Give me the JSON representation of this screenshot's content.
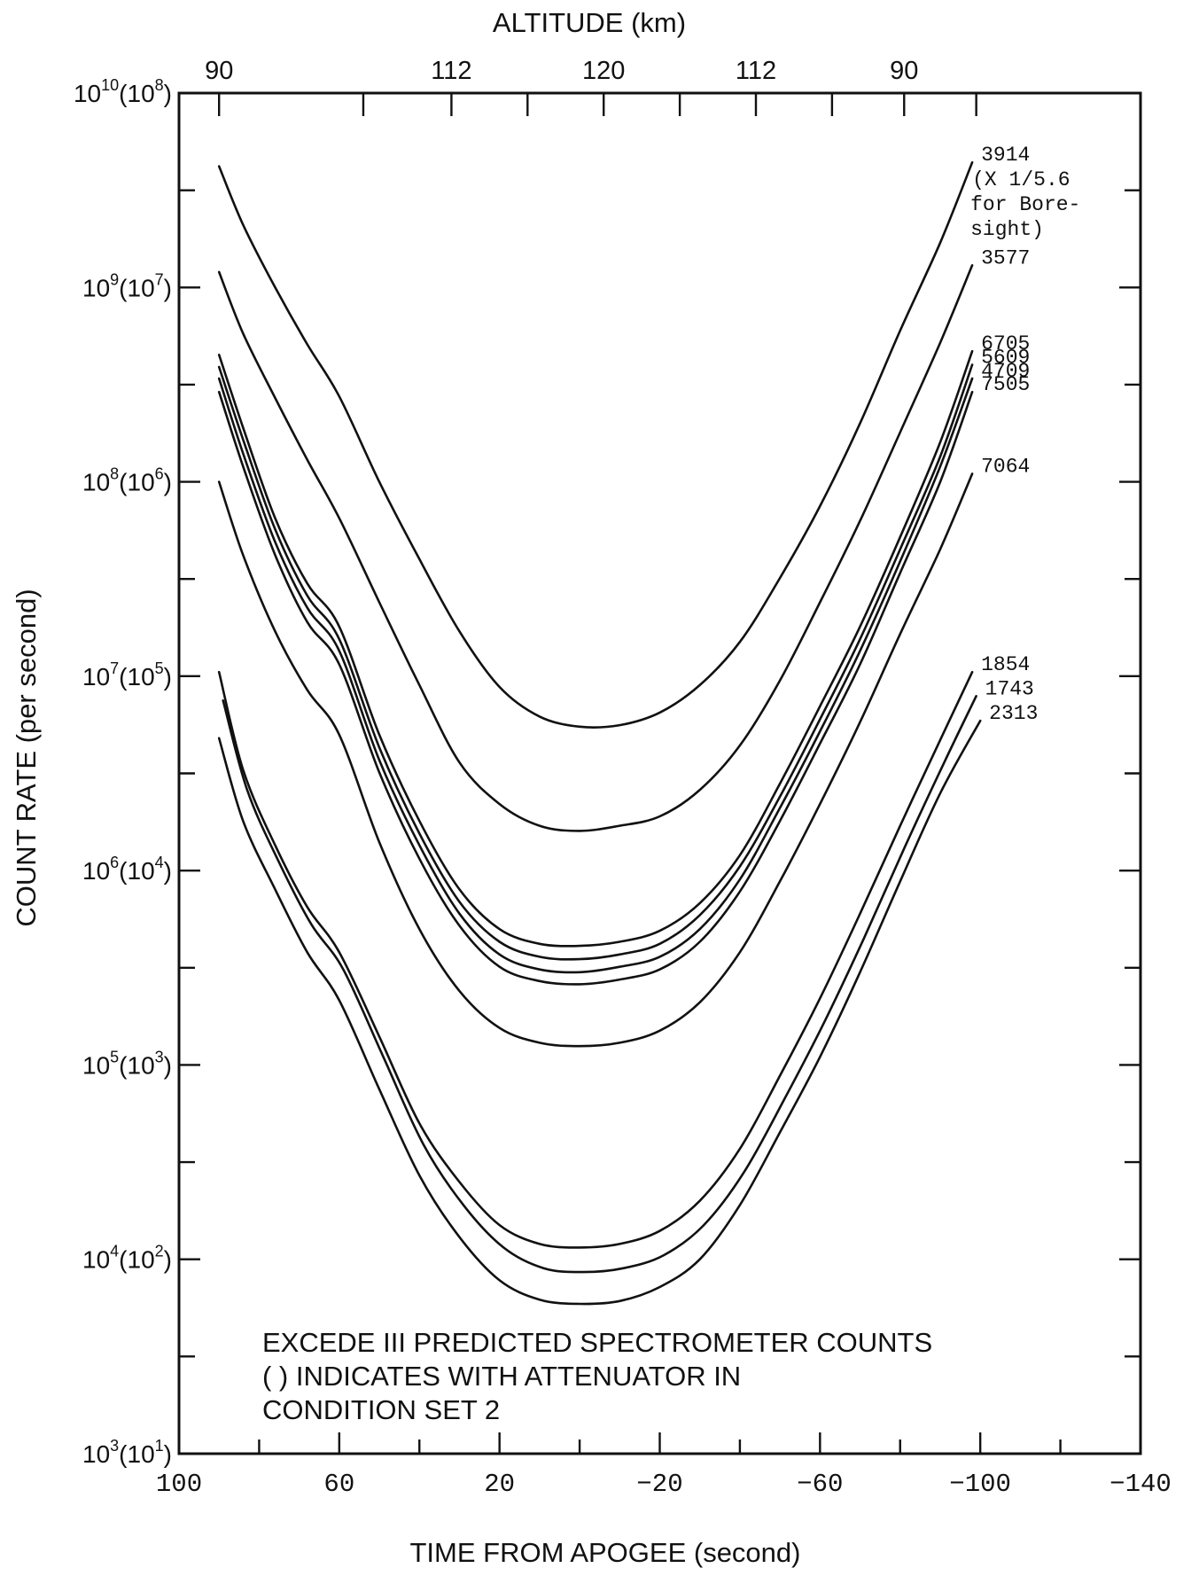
{
  "chart_data": {
    "type": "line",
    "title": "ALTITUDE (km)",
    "xlabel": "TIME FROM APOGEE (second)",
    "ylabel": "COUNT RATE (per second)",
    "x_reversed": true,
    "y_scale": "log",
    "xlim": [
      100,
      -140
    ],
    "ylim": [
      1000,
      10000000000
    ],
    "x_ticks": [
      {
        "value": 100,
        "label": "100"
      },
      {
        "value": 60,
        "label": "60"
      },
      {
        "value": 20,
        "label": "20"
      },
      {
        "value": -20,
        "label": "−20"
      },
      {
        "value": -60,
        "label": "−60"
      },
      {
        "value": -100,
        "label": "−100"
      },
      {
        "value": -140,
        "label": "−140"
      }
    ],
    "y_ticks": [
      {
        "value": 10000000000,
        "base": "10",
        "exp": "10",
        "att_base": "10",
        "att_exp": "8"
      },
      {
        "value": 1000000000,
        "base": "10",
        "exp": "9",
        "att_base": "10",
        "att_exp": "7"
      },
      {
        "value": 100000000,
        "base": "10",
        "exp": "8",
        "att_base": "10",
        "att_exp": "6"
      },
      {
        "value": 10000000,
        "base": "10",
        "exp": "7",
        "att_base": "10",
        "att_exp": "5"
      },
      {
        "value": 1000000,
        "base": "10",
        "exp": "6",
        "att_base": "10",
        "att_exp": "4"
      },
      {
        "value": 100000,
        "base": "10",
        "exp": "5",
        "att_base": "10",
        "att_exp": "3"
      },
      {
        "value": 10000,
        "base": "10",
        "exp": "4",
        "att_base": "10",
        "att_exp": "2"
      },
      {
        "value": 1000,
        "base": "10",
        "exp": "3",
        "att_base": "10",
        "att_exp": "1"
      }
    ],
    "altitude_ticks": [
      {
        "time": 90,
        "label": "90"
      },
      {
        "time": 54,
        "label": ""
      },
      {
        "time": 32,
        "label": "112"
      },
      {
        "time": 13,
        "label": ""
      },
      {
        "time": -6,
        "label": "120"
      },
      {
        "time": -25,
        "label": ""
      },
      {
        "time": -44,
        "label": "112"
      },
      {
        "time": -63,
        "label": ""
      },
      {
        "time": -81,
        "label": "90"
      },
      {
        "time": -99,
        "label": ""
      }
    ],
    "x_minor_ticks": [
      80,
      40,
      0,
      -40,
      -80,
      -120
    ],
    "series": [
      {
        "name": "3914",
        "label_lines": [
          "3914",
          "(X 1/5.6",
          "for Bore-",
          "sight)"
        ],
        "x": [
          90,
          84,
          76,
          68,
          60,
          50,
          40,
          30,
          20,
          10,
          0,
          -10,
          -20,
          -30,
          -40,
          -50,
          -60,
          -70,
          -80,
          -90,
          -98
        ],
        "y": [
          4200000000.0,
          2100000000.0,
          1000000000.0,
          510000000.0,
          275000000.0,
          100000000.0,
          40000000.0,
          17000000.0,
          8800000.0,
          6200000.0,
          5500000.0,
          5600000.0,
          6500000.0,
          9000000.0,
          15000000.0,
          32000000.0,
          75000000.0,
          200000000.0,
          600000000.0,
          1700000000.0,
          4400000000.0
        ]
      },
      {
        "name": "3577",
        "label_lines": [
          "3577"
        ],
        "x": [
          90,
          84,
          76,
          68,
          60,
          50,
          40,
          30,
          20,
          10,
          0,
          -10,
          -20,
          -30,
          -40,
          -50,
          -60,
          -70,
          -80,
          -90,
          -98
        ],
        "y": [
          1200000000.0,
          580000000.0,
          270000000.0,
          130000000.0,
          65000000.0,
          24000000.0,
          9000000.0,
          3600000.0,
          2200000.0,
          1700000.0,
          1600000.0,
          1700000.0,
          1900000.0,
          2600000.0,
          4400000.0,
          9500000.0,
          24000000.0,
          63000000.0,
          180000000.0,
          520000000.0,
          1300000000.0
        ]
      },
      {
        "name": "6705",
        "label_lines": [
          "6705"
        ],
        "x": [
          90,
          84,
          76,
          68,
          60,
          50,
          40,
          30,
          20,
          10,
          0,
          -10,
          -20,
          -30,
          -40,
          -50,
          -60,
          -70,
          -80,
          -90,
          -98
        ],
        "y": [
          450000000.0,
          190000000.0,
          65000000.0,
          30000000.0,
          18000000.0,
          5000000.0,
          1800000.0,
          800000.0,
          500000.0,
          420000.0,
          410000.0,
          430000.0,
          490000.0,
          680000.0,
          1200000.0,
          2800000.0,
          7000000.0,
          18000000.0,
          52000000.0,
          160000000.0,
          470000000.0
        ]
      },
      {
        "name": "5609",
        "label_lines": [
          "5609"
        ],
        "x": [
          90,
          84,
          76,
          68,
          60,
          50,
          40,
          30,
          20,
          10,
          0,
          -10,
          -20,
          -30,
          -40,
          -50,
          -60,
          -70,
          -80,
          -90,
          -98
        ],
        "y": [
          390000000.0,
          165000000.0,
          57000000.0,
          26000000.0,
          15500000.0,
          4300000.0,
          1550000.0,
          690000.0,
          430000.0,
          360000.0,
          350000.0,
          370000.0,
          420000.0,
          590000.0,
          1050000.0,
          2400000.0,
          6000000.0,
          15500000.0,
          45000000.0,
          135000000.0,
          400000000.0
        ]
      },
      {
        "name": "4709",
        "label_lines": [
          "4709"
        ],
        "x": [
          90,
          84,
          76,
          68,
          60,
          50,
          40,
          30,
          20,
          10,
          0,
          -10,
          -20,
          -30,
          -40,
          -50,
          -60,
          -70,
          -80,
          -90,
          -98
        ],
        "y": [
          340000000.0,
          140000000.0,
          49000000.0,
          22500000.0,
          13500000.0,
          3700000.0,
          1350000.0,
          600000.0,
          370000.0,
          310000.0,
          300000.0,
          320000.0,
          360000.0,
          500000.0,
          900000.0,
          2100000.0,
          5200000.0,
          13500000.0,
          39000000.0,
          120000000.0,
          340000000.0
        ]
      },
      {
        "name": "7505",
        "label_lines": [
          "7505"
        ],
        "x": [
          90,
          84,
          76,
          68,
          60,
          50,
          40,
          30,
          20,
          10,
          0,
          -10,
          -20,
          -30,
          -40,
          -50,
          -60,
          -70,
          -80,
          -90,
          -98
        ],
        "y": [
          290000000.0,
          120000000.0,
          42000000.0,
          19000000.0,
          11500000.0,
          3200000.0,
          1150000.0,
          520000.0,
          320000.0,
          270000.0,
          260000.0,
          275000.0,
          310000.0,
          430000.0,
          780000.0,
          1800000.0,
          4500000.0,
          11500000.0,
          34000000.0,
          100000000.0,
          290000000.0
        ]
      },
      {
        "name": "7064",
        "label_lines": [
          "7064"
        ],
        "x": [
          90,
          84,
          76,
          68,
          60,
          50,
          40,
          30,
          20,
          10,
          0,
          -10,
          -20,
          -30,
          -40,
          -50,
          -60,
          -70,
          -80,
          -90,
          -98
        ],
        "y": [
          100000000.0,
          42000000.0,
          17000000.0,
          8500000.0,
          5000000.0,
          1400000.0,
          500000.0,
          240000.0,
          155000.0,
          130000.0,
          125000.0,
          130000.0,
          150000.0,
          210000.0,
          380000.0,
          880000.0,
          2200000.0,
          5800000.0,
          16500000.0,
          45000000.0,
          110000000.0
        ]
      },
      {
        "name": "1854",
        "label_lines": [
          "1854"
        ],
        "x": [
          90,
          84,
          76,
          68,
          60,
          50,
          40,
          30,
          20,
          10,
          0,
          -10,
          -20,
          -30,
          -40,
          -50,
          -60,
          -70,
          -80,
          -90,
          -98
        ],
        "y": [
          10500000.0,
          3300000.0,
          1350000.0,
          650000.0,
          380000.0,
          140000.0,
          50000.0,
          25000.0,
          15000.0,
          12000.0,
          11500.0,
          12000.0,
          14000.0,
          20000.0,
          37000.0,
          88000.0,
          220000.0,
          600000.0,
          1700000.0,
          4700000.0,
          10500000.0
        ]
      },
      {
        "name": "1743",
        "label_lines": [
          "1743"
        ],
        "x": [
          89,
          83,
          75,
          67,
          59,
          49,
          39,
          29,
          19,
          9,
          -1,
          -11,
          -21,
          -31,
          -41,
          -51,
          -61,
          -71,
          -81,
          -91,
          -99
        ],
        "y": [
          7500000.0,
          2600000.0,
          1100000.0,
          530000.0,
          310000.0,
          110000.0,
          39000.0,
          19000.0,
          11500.0,
          9000.0,
          8600.0,
          9000.0,
          10500.0,
          15000.0,
          28000.0,
          66000.0,
          165000.0,
          450000.0,
          1300000.0,
          3600000.0,
          7900000.0
        ]
      },
      {
        "name": "2313",
        "label_lines": [
          "2313"
        ],
        "x": [
          90,
          84,
          76,
          68,
          60,
          50,
          40,
          30,
          20,
          10,
          0,
          -10,
          -20,
          -30,
          -40,
          -50,
          -60,
          -70,
          -80,
          -90,
          -100
        ],
        "y": [
          4800000.0,
          1800000.0,
          800000.0,
          380000.0,
          215000.0,
          75000.0,
          27000.0,
          13000.0,
          7800.0,
          6200.0,
          5900.0,
          6100.0,
          7200.0,
          10000.0,
          19000.0,
          45000.0,
          110000.0,
          300000.0,
          880000.0,
          2500000.0,
          5900000.0
        ]
      }
    ],
    "annotation": {
      "lines": [
        "EXCEDE III PREDICTED SPECTROMETER COUNTS",
        "( ) INDICATES WITH ATTENUATOR IN",
        "CONDITION SET 2"
      ]
    },
    "legend": "none",
    "grid": false
  }
}
